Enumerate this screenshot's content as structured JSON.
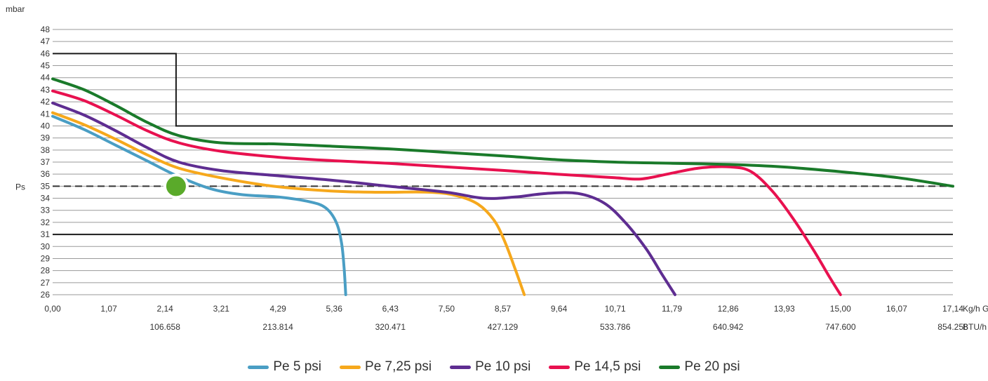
{
  "chart_data": {
    "type": "line",
    "ylabel": "mbar",
    "ylim": [
      26,
      48
    ],
    "y_ticks": [
      "26",
      "27",
      "28",
      "29",
      "30",
      "31",
      "32",
      "33",
      "34",
      "35",
      "36",
      "37",
      "38",
      "39",
      "40",
      "41",
      "42",
      "43",
      "44",
      "45",
      "46",
      "47",
      "48"
    ],
    "y_extra_label": {
      "label": "Ps",
      "value": 35
    },
    "xlim": [
      0,
      17.14
    ],
    "x_ticks": [
      "0,00",
      "1,07",
      "2,14",
      "3,21",
      "4,29",
      "5,36",
      "6,43",
      "7,50",
      "8,57",
      "9,64",
      "10,71",
      "11,79",
      "12,86",
      "13,93",
      "15,00",
      "16,07",
      "17,14"
    ],
    "x_unit": "Kg/h GLP",
    "x2_ticks": [
      {
        "label": "106.658",
        "at": 2.14
      },
      {
        "label": "213.814",
        "at": 4.29
      },
      {
        "label": "320.471",
        "at": 6.43
      },
      {
        "label": "427.129",
        "at": 8.57
      },
      {
        "label": "533.786",
        "at": 10.71
      },
      {
        "label": "640.942",
        "at": 12.86
      },
      {
        "label": "747.600",
        "at": 15.0
      },
      {
        "label": "854.258",
        "at": 17.14
      }
    ],
    "x2_unit": "BTU/h GLP",
    "grid": true,
    "legend_position": "bottom",
    "reference_lines": [
      {
        "value": 35,
        "style": "dashed",
        "color": "#333333"
      },
      {
        "value": 31,
        "style": "solid",
        "color": "#1a1a1a"
      }
    ],
    "limit_curve": {
      "color": "#1a1a1a",
      "points": [
        [
          0,
          46
        ],
        [
          2.35,
          46
        ],
        [
          2.35,
          40
        ],
        [
          17.14,
          40
        ]
      ]
    },
    "marker": {
      "x": 2.35,
      "y": 35,
      "color": "#5aaa2a"
    },
    "series": [
      {
        "name": "Pe 5 psi",
        "color": "#4a9ec4",
        "points": [
          [
            0,
            40.8
          ],
          [
            0.6,
            39.7
          ],
          [
            1.2,
            38.4
          ],
          [
            1.8,
            37.1
          ],
          [
            2.35,
            35.9
          ],
          [
            3.0,
            34.8
          ],
          [
            3.6,
            34.3
          ],
          [
            4.3,
            34.1
          ],
          [
            4.9,
            33.7
          ],
          [
            5.2,
            33.2
          ],
          [
            5.4,
            32.0
          ],
          [
            5.5,
            30.3
          ],
          [
            5.55,
            28.2
          ],
          [
            5.58,
            26.0
          ]
        ]
      },
      {
        "name": "Pe 7,25 psi",
        "color": "#f6a81c",
        "points": [
          [
            0,
            41.1
          ],
          [
            0.6,
            40.1
          ],
          [
            1.2,
            38.9
          ],
          [
            1.8,
            37.6
          ],
          [
            2.4,
            36.5
          ],
          [
            3.2,
            35.7
          ],
          [
            4.2,
            35.0
          ],
          [
            5.3,
            34.6
          ],
          [
            6.2,
            34.5
          ],
          [
            7.2,
            34.5
          ],
          [
            7.7,
            34.2
          ],
          [
            8.1,
            33.5
          ],
          [
            8.4,
            32.2
          ],
          [
            8.6,
            30.5
          ],
          [
            8.8,
            28.2
          ],
          [
            8.98,
            26.0
          ]
        ]
      },
      {
        "name": "Pe 10 psi",
        "color": "#5e2d91",
        "points": [
          [
            0,
            41.9
          ],
          [
            0.6,
            40.9
          ],
          [
            1.2,
            39.6
          ],
          [
            1.8,
            38.2
          ],
          [
            2.4,
            37.0
          ],
          [
            3.2,
            36.3
          ],
          [
            4.2,
            35.9
          ],
          [
            5.3,
            35.5
          ],
          [
            6.4,
            35.0
          ],
          [
            7.5,
            34.5
          ],
          [
            8.2,
            34.0
          ],
          [
            8.8,
            34.1
          ],
          [
            9.4,
            34.4
          ],
          [
            10.0,
            34.4
          ],
          [
            10.5,
            33.6
          ],
          [
            10.9,
            32.0
          ],
          [
            11.3,
            29.8
          ],
          [
            11.6,
            27.7
          ],
          [
            11.85,
            26.0
          ]
        ]
      },
      {
        "name": "Pe 14,5 psi",
        "color": "#e8114f",
        "points": [
          [
            0,
            42.9
          ],
          [
            0.6,
            42.1
          ],
          [
            1.2,
            40.9
          ],
          [
            1.8,
            39.6
          ],
          [
            2.4,
            38.6
          ],
          [
            3.2,
            37.9
          ],
          [
            4.3,
            37.4
          ],
          [
            5.4,
            37.1
          ],
          [
            6.4,
            36.9
          ],
          [
            7.5,
            36.6
          ],
          [
            8.6,
            36.3
          ],
          [
            9.6,
            36.0
          ],
          [
            10.7,
            35.7
          ],
          [
            11.2,
            35.6
          ],
          [
            11.7,
            36.0
          ],
          [
            12.3,
            36.5
          ],
          [
            12.9,
            36.6
          ],
          [
            13.3,
            36.2
          ],
          [
            13.7,
            34.6
          ],
          [
            14.1,
            32.3
          ],
          [
            14.5,
            29.6
          ],
          [
            14.8,
            27.4
          ],
          [
            15.0,
            26.0
          ]
        ]
      },
      {
        "name": "Pe 20 psi",
        "color": "#1a7a2a",
        "points": [
          [
            0,
            43.9
          ],
          [
            0.6,
            43.0
          ],
          [
            1.2,
            41.7
          ],
          [
            1.8,
            40.3
          ],
          [
            2.4,
            39.2
          ],
          [
            3.2,
            38.6
          ],
          [
            4.3,
            38.5
          ],
          [
            5.4,
            38.3
          ],
          [
            6.4,
            38.1
          ],
          [
            7.5,
            37.8
          ],
          [
            8.6,
            37.5
          ],
          [
            9.6,
            37.2
          ],
          [
            10.7,
            37.0
          ],
          [
            11.8,
            36.9
          ],
          [
            12.9,
            36.8
          ],
          [
            13.9,
            36.6
          ],
          [
            15.0,
            36.2
          ],
          [
            16.1,
            35.7
          ],
          [
            17.14,
            35.0
          ]
        ]
      }
    ]
  }
}
